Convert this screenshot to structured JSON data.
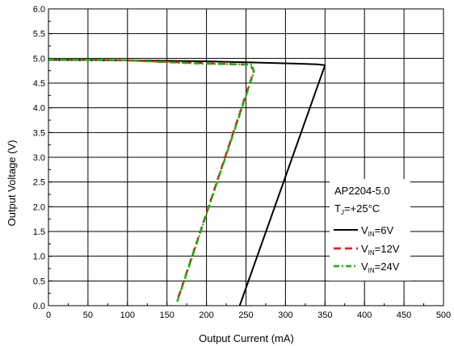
{
  "chart_data": {
    "type": "line",
    "xlabel": "Output Current (mA)",
    "ylabel": "Output Voltage (V)",
    "xlim": [
      0,
      500
    ],
    "ylim": [
      0,
      6.0
    ],
    "x_ticks": [
      "0",
      "50",
      "100",
      "150",
      "200",
      "250",
      "300",
      "350",
      "400",
      "450",
      "500"
    ],
    "y_ticks": [
      "0.0",
      "0.5",
      "1.0",
      "1.5",
      "2.0",
      "2.5",
      "3.0",
      "3.5",
      "4.0",
      "4.5",
      "5.0",
      "5.5",
      "6.0"
    ],
    "grid": true,
    "annotation": {
      "part": "AP2204-5.0",
      "tj_main": "T",
      "tj_sub": "J",
      "tj_rest": "=+25°C"
    },
    "legend_position": "right",
    "series": [
      {
        "name_main": "V",
        "name_sub": "IN",
        "name_rest": "=6V",
        "color": "#000000",
        "style": "solid",
        "points": [
          [
            0,
            4.97
          ],
          [
            100,
            4.96
          ],
          [
            200,
            4.94
          ],
          [
            300,
            4.9
          ],
          [
            340,
            4.88
          ],
          [
            350,
            4.86
          ],
          [
            242,
            0.0
          ]
        ]
      },
      {
        "name_main": "V",
        "name_sub": "IN",
        "name_rest": "=12V",
        "color": "#ff0000",
        "style": "dash",
        "points": [
          [
            0,
            4.98
          ],
          [
            100,
            4.96
          ],
          [
            150,
            4.93
          ],
          [
            200,
            4.9
          ],
          [
            240,
            4.88
          ],
          [
            255,
            4.87
          ],
          [
            260,
            4.75
          ],
          [
            163,
            0.1
          ]
        ]
      },
      {
        "name_main": "V",
        "name_sub": "IN",
        "name_rest": "=24V",
        "color": "#00c000",
        "style": "dashdot",
        "points": [
          [
            0,
            4.98
          ],
          [
            100,
            4.96
          ],
          [
            150,
            4.92
          ],
          [
            200,
            4.89
          ],
          [
            240,
            4.88
          ],
          [
            258,
            4.87
          ],
          [
            260,
            4.72
          ],
          [
            163,
            0.08
          ]
        ]
      }
    ]
  }
}
